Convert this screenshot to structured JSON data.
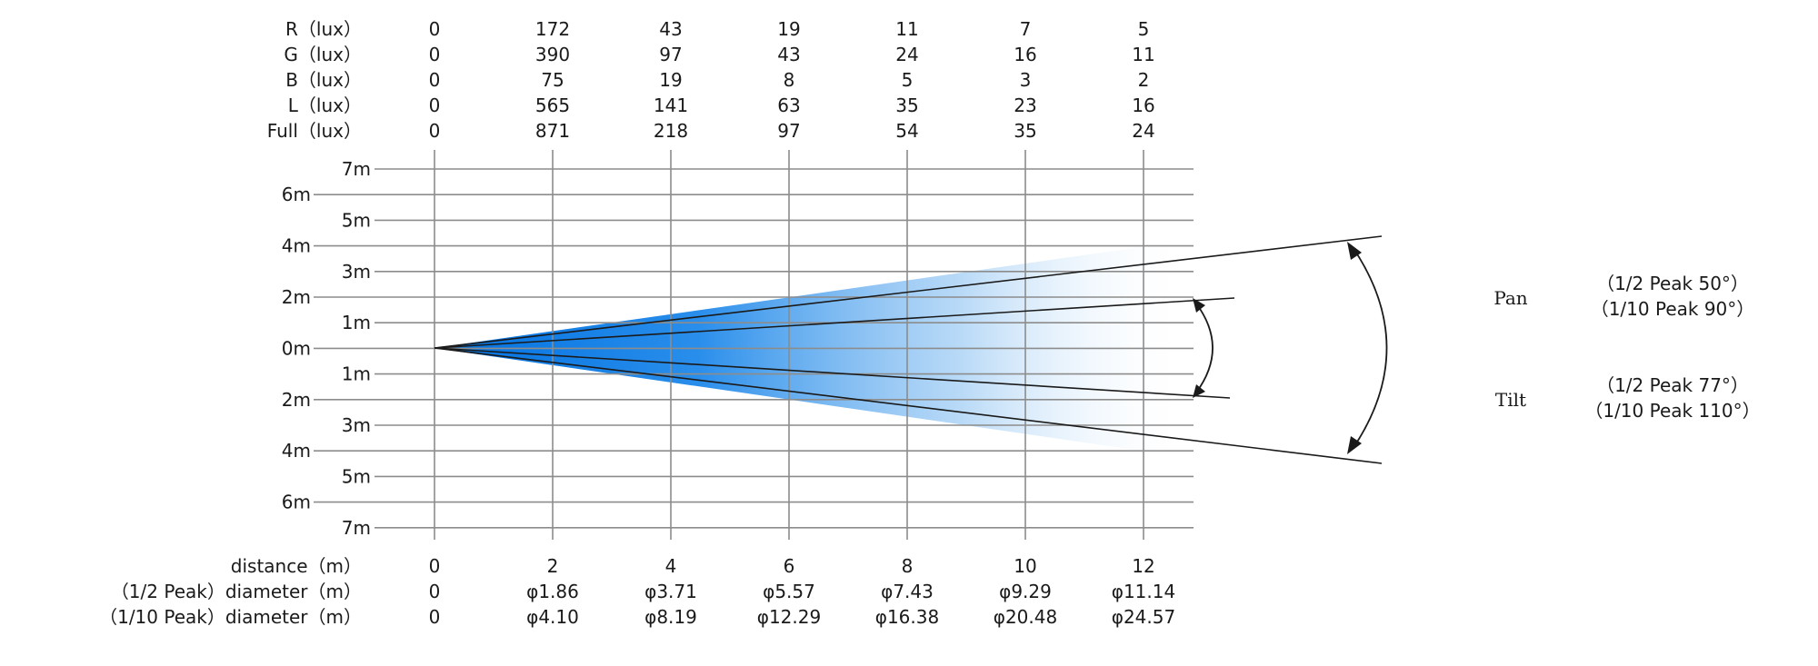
{
  "lux_rows": [
    {
      "label": "R（lux）",
      "values": [
        "0",
        "172",
        "43",
        "19",
        "11",
        "7",
        "5"
      ]
    },
    {
      "label": "G（lux）",
      "values": [
        "0",
        "390",
        "97",
        "43",
        "24",
        "16",
        "11"
      ]
    },
    {
      "label": "B（lux）",
      "values": [
        "0",
        "75",
        "19",
        "8",
        "5",
        "3",
        "2"
      ]
    },
    {
      "label": "L（lux）",
      "values": [
        "0",
        "565",
        "141",
        "63",
        "35",
        "23",
        "16"
      ]
    },
    {
      "label": "Full（lux）",
      "values": [
        "0",
        "871",
        "218",
        "97",
        "54",
        "35",
        "24"
      ]
    }
  ],
  "y_labels_right": [
    "7m",
    "5m",
    "3m",
    "1m",
    "1m",
    "3m",
    "5m",
    "7m"
  ],
  "y_labels_left": [
    "6m",
    "4m",
    "2m",
    "0m",
    "2m",
    "4m",
    "6m"
  ],
  "bottom_rows": [
    {
      "label": "distance（m）",
      "values": [
        "0",
        "2",
        "4",
        "6",
        "8",
        "10",
        "12"
      ]
    },
    {
      "label": "（1/2 Peak）diameter（m）",
      "values": [
        "0",
        "φ1.86",
        "φ3.71",
        "φ5.57",
        "φ7.43",
        "φ9.29",
        "φ11.14"
      ]
    },
    {
      "label": "（1/10 Peak）diameter（m）",
      "values": [
        "0",
        "φ4.10",
        "φ8.19",
        "φ12.29",
        "φ16.38",
        "φ20.48",
        "φ24.57"
      ]
    }
  ],
  "angles": [
    {
      "name": "Pan",
      "half": "（1/2 Peak   50°）",
      "tenth": "（1/10 Peak  90°）"
    },
    {
      "name": "Tilt",
      "half": "（1/2 Peak   77°）",
      "tenth": "（1/10 Peak  110°）"
    }
  ],
  "colors": {
    "beam_core": "#0070e0",
    "grid": "#8c8c8c",
    "text": "#1a1a1a"
  }
}
